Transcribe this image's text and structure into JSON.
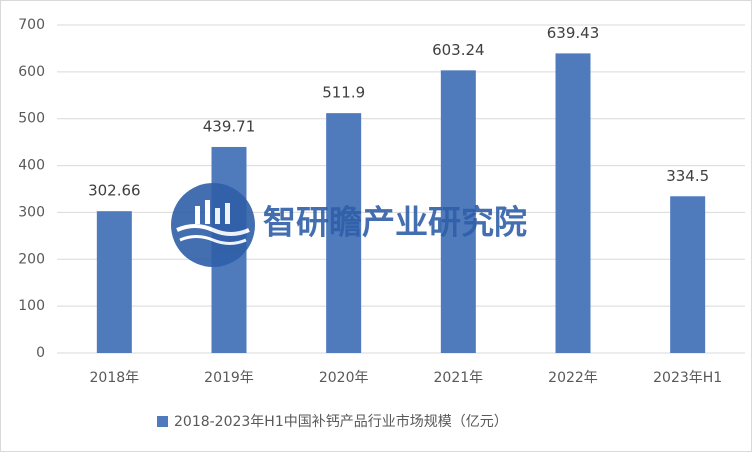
{
  "chart_data": {
    "type": "bar",
    "categories": [
      "2018年",
      "2019年",
      "2020年",
      "2021年",
      "2022年",
      "2023年H1"
    ],
    "series": [
      {
        "name": "2018-2023年H1中国补钙产品行业市场规模（亿元）",
        "color": "#4f7bbd",
        "values": [
          302.66,
          439.71,
          511.9,
          603.24,
          639.43,
          334.5
        ]
      }
    ],
    "ylim": [
      0,
      700
    ],
    "yticks": [
      0,
      100,
      200,
      300,
      400,
      500,
      600,
      700
    ],
    "grid": true,
    "legend": "bottom",
    "watermark": "智研瞻产业研究院"
  }
}
